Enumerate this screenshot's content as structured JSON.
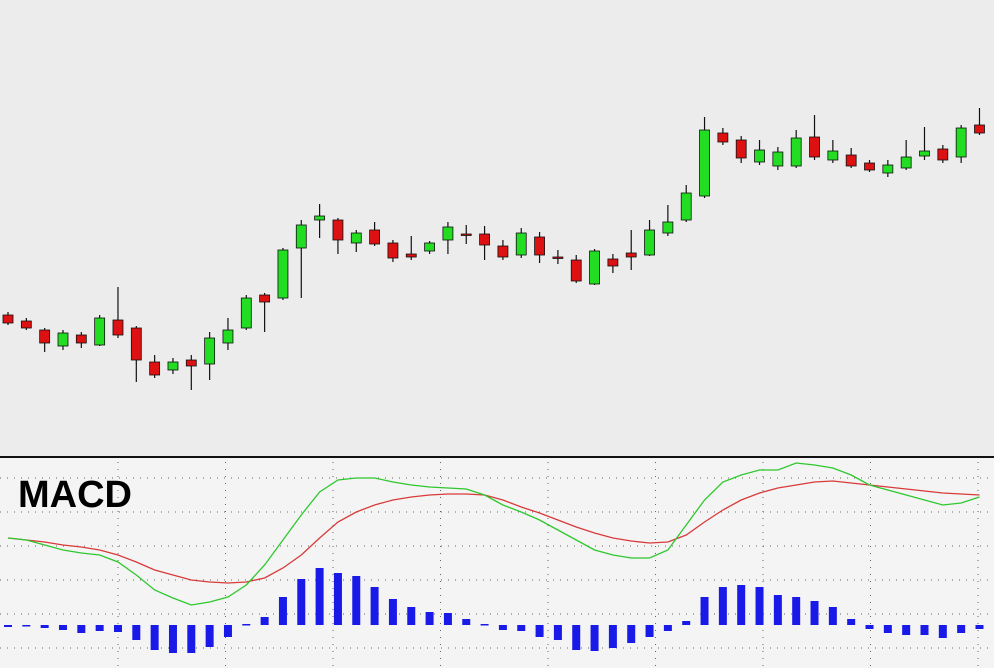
{
  "chart_data": [
    {
      "type": "candlestick",
      "ylim": [
        0,
        450
      ],
      "up_color": "#22dd22",
      "down_color": "#dd1111",
      "outline_color": "#111111",
      "open": [
        135,
        129,
        120,
        104,
        115,
        105,
        130,
        122,
        88,
        80,
        90,
        86,
        107,
        122,
        155,
        152,
        202,
        230,
        230,
        207,
        220,
        207,
        196,
        199,
        210,
        216,
        216,
        204,
        195,
        213,
        193,
        190,
        166,
        191,
        197,
        195,
        217,
        230,
        254,
        317,
        310,
        288,
        284,
        284,
        313,
        290,
        295,
        287,
        277,
        282,
        294,
        301,
        293,
        325
      ],
      "high": [
        138,
        132,
        122,
        120,
        118,
        135,
        163,
        124,
        95,
        92,
        95,
        118,
        132,
        155,
        157,
        202,
        230,
        246,
        232,
        220,
        228,
        210,
        214,
        209,
        228,
        225,
        224,
        210,
        222,
        218,
        200,
        195,
        201,
        196,
        220,
        230,
        245,
        265,
        333,
        322,
        314,
        310,
        303,
        320,
        335,
        310,
        302,
        290,
        290,
        310,
        323,
        305,
        325,
        342
      ],
      "low": [
        125,
        120,
        98,
        100,
        102,
        104,
        112,
        68,
        72,
        76,
        60,
        70,
        100,
        120,
        118,
        150,
        152,
        212,
        196,
        198,
        204,
        188,
        190,
        196,
        196,
        206,
        190,
        190,
        192,
        187,
        186,
        167,
        165,
        177,
        180,
        194,
        214,
        228,
        252,
        305,
        287,
        285,
        280,
        282,
        290,
        287,
        282,
        278,
        273,
        280,
        290,
        287,
        287,
        315
      ],
      "close": [
        127,
        122,
        107,
        117,
        107,
        132,
        115,
        90,
        75,
        88,
        84,
        112,
        120,
        152,
        148,
        200,
        225,
        234,
        210,
        217,
        206,
        192,
        193,
        207,
        223,
        215,
        205,
        193,
        217,
        195,
        192,
        169,
        199,
        184,
        193,
        220,
        228,
        257,
        320,
        308,
        292,
        300,
        298,
        312,
        293,
        299,
        284,
        280,
        285,
        293,
        299,
        290,
        322,
        317
      ]
    },
    {
      "type": "macd",
      "title": "MACD",
      "ylim": [
        -4.3,
        16.7
      ],
      "grid": true,
      "series": [
        {
          "kind": "bar",
          "color": "#1a1ae8",
          "values": [
            -0.2,
            -0.1,
            -0.3,
            -0.5,
            -0.8,
            -0.6,
            -0.7,
            -1.5,
            -2.5,
            -2.8,
            -2.8,
            -2.2,
            -1.2,
            0.1,
            0.8,
            2.8,
            4.6,
            5.7,
            5.2,
            4.9,
            3.8,
            2.6,
            1.8,
            1.3,
            1.2,
            0.6,
            0.1,
            -0.5,
            -0.6,
            -1.2,
            -1.5,
            -2.5,
            -2.6,
            -2.3,
            -1.8,
            -1.2,
            -0.6,
            0.4,
            2.8,
            3.8,
            4.0,
            3.8,
            3.0,
            2.8,
            2.4,
            1.8,
            0.6,
            -0.4,
            -0.8,
            -1.0,
            -1.0,
            -1.3,
            -0.8,
            -0.4
          ]
        },
        {
          "kind": "line",
          "color": "#d83a3a",
          "values": [
            8.7,
            8.5,
            8.3,
            8.0,
            7.8,
            7.5,
            7.0,
            6.3,
            5.5,
            5.0,
            4.5,
            4.3,
            4.2,
            4.3,
            4.7,
            5.7,
            7.0,
            8.7,
            10.3,
            11.3,
            12.0,
            12.5,
            12.8,
            13.0,
            13.1,
            13.1,
            13.0,
            12.5,
            11.8,
            11.2,
            10.5,
            9.8,
            9.2,
            8.7,
            8.4,
            8.2,
            8.3,
            9.0,
            10.3,
            11.5,
            12.5,
            13.2,
            13.7,
            14.0,
            14.3,
            14.4,
            14.2,
            14.0,
            13.8,
            13.6,
            13.4,
            13.2,
            13.1,
            13.0
          ]
        },
        {
          "kind": "line",
          "color": "#2ec82e",
          "values": [
            8.7,
            8.5,
            8.0,
            7.5,
            7.2,
            7.0,
            6.3,
            5.0,
            3.5,
            2.7,
            2.0,
            2.3,
            2.8,
            4.0,
            6.0,
            8.5,
            11.0,
            13.3,
            14.5,
            14.7,
            14.7,
            14.3,
            14.0,
            13.8,
            13.7,
            13.6,
            13.0,
            12.0,
            11.3,
            10.5,
            9.5,
            8.5,
            7.5,
            7.0,
            6.7,
            6.7,
            7.5,
            10.0,
            12.5,
            14.3,
            15.0,
            15.5,
            15.5,
            16.2,
            16.0,
            15.7,
            15.0,
            14.0,
            13.5,
            13.0,
            12.5,
            12.0,
            12.2,
            12.8
          ]
        }
      ]
    }
  ]
}
